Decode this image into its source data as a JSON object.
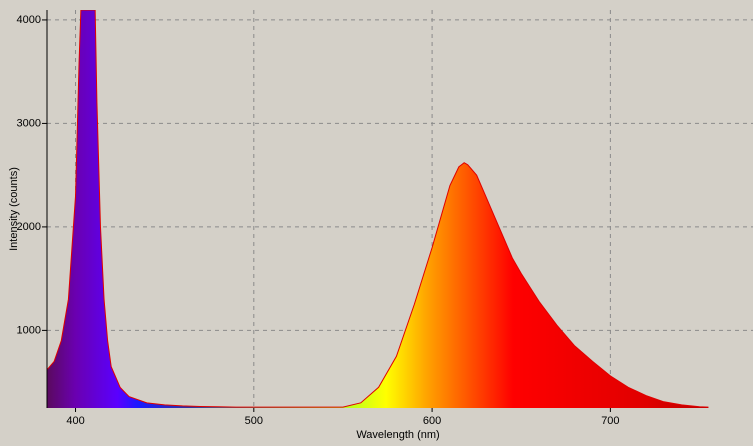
{
  "chart_data": {
    "type": "area",
    "x_label": "Wavelength (nm)",
    "y_label": "Intensity (counts)",
    "x": [
      384,
      388,
      392,
      396,
      400,
      402,
      403,
      404,
      406,
      408,
      410,
      411,
      412,
      414,
      416,
      418,
      420,
      425,
      430,
      440,
      450,
      460,
      470,
      480,
      490,
      550,
      560,
      570,
      580,
      590,
      600,
      605,
      610,
      615,
      618,
      620,
      625,
      630,
      635,
      640,
      645,
      650,
      660,
      670,
      680,
      690,
      700,
      710,
      720,
      730,
      740,
      750,
      755
    ],
    "values": [
      620,
      700,
      900,
      1300,
      2300,
      3600,
      4096,
      4096,
      4096,
      4096,
      4096,
      4096,
      3200,
      2000,
      1300,
      900,
      650,
      450,
      360,
      300,
      280,
      270,
      265,
      262,
      258,
      258,
      300,
      450,
      750,
      1250,
      1800,
      2100,
      2400,
      2580,
      2620,
      2600,
      2500,
      2300,
      2100,
      1900,
      1700,
      1550,
      1280,
      1050,
      850,
      700,
      560,
      450,
      370,
      310,
      280,
      262,
      258
    ],
    "color": "#e00000",
    "xlim": [
      384,
      780
    ],
    "ylim": [
      250,
      4096
    ],
    "xticks": [
      400,
      500,
      600,
      700
    ],
    "yticks": [
      1000,
      2000,
      3000,
      4000
    ],
    "grid": true
  }
}
